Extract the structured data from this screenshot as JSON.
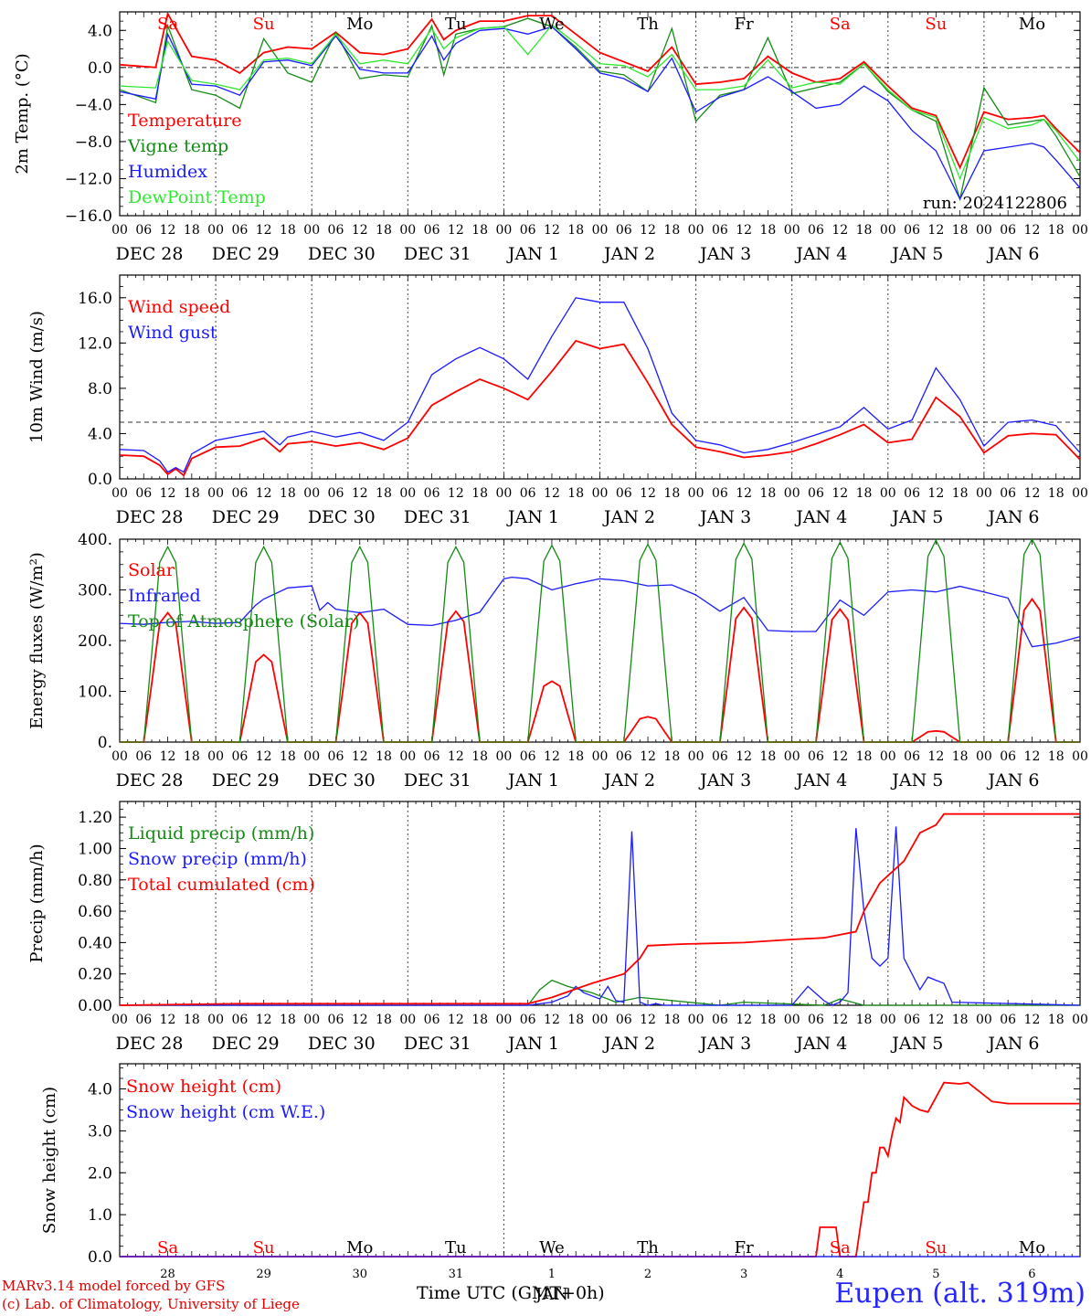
{
  "colors": {
    "red": "#ff0000",
    "green": "#138a13",
    "blue": "#1a1aff",
    "lightgreen": "#2ee82e",
    "grid": "#444444",
    "black": "#000000"
  },
  "weekdays": [
    "Sa",
    "Su",
    "Mo",
    "Tu",
    "We",
    "Th",
    "Fr",
    "Sa",
    "Su",
    "Mo"
  ],
  "weekday_colors": [
    "red",
    "red",
    "black",
    "black",
    "black",
    "black",
    "black",
    "red",
    "red",
    "black"
  ],
  "hour_ticks": [
    "00",
    "06",
    "12",
    "18"
  ],
  "hour_end": "00",
  "date_labels": [
    "DEC 28",
    "DEC 29",
    "DEC 30",
    "DEC 31",
    "JAN  1",
    "JAN  2",
    "JAN  3",
    "JAN  4",
    "JAN  5",
    "JAN  6"
  ],
  "bottom_day_numbers": [
    "28",
    "29",
    "30",
    "31",
    "1",
    "2",
    "3",
    "4",
    "5",
    "6"
  ],
  "bottom_month": "JAN",
  "x_title": "Time UTC (GMT+0h)",
  "credit": {
    "line1": "MARv3.14 model forced by GFS",
    "line2": "(c) Lab. of Climatology, University of Liege"
  },
  "station": "Eupen (alt. 319m)",
  "chart_data": [
    {
      "type": "line",
      "ylabel": "2m Temp. (°C)",
      "ylim": [
        -16,
        6
      ],
      "yticks": [
        4,
        0,
        -4,
        -8,
        -12,
        -16
      ],
      "ytick_labels": [
        "4.0",
        "0.0",
        "−4.0",
        "−8.0",
        "−12.0",
        "−16.0"
      ],
      "ref_line": 0,
      "run_label": "run: 2024122806",
      "series": [
        {
          "name": "Temperature",
          "color": "red",
          "x": [
            0,
            9,
            12,
            18,
            24,
            30,
            36,
            42,
            48,
            54,
            60,
            66,
            72,
            78,
            81,
            84,
            90,
            96,
            102,
            108,
            114,
            120,
            126,
            132,
            138,
            144,
            150,
            156,
            162,
            168,
            174,
            180,
            186,
            192,
            198,
            204,
            210,
            216,
            222,
            228,
            231,
            234,
            240
          ],
          "y": [
            0.3,
            0,
            5.8,
            1.2,
            0.8,
            -0.6,
            1.6,
            2.2,
            2,
            3.8,
            1.6,
            1.4,
            2,
            5.2,
            3,
            4,
            5,
            5,
            5.6,
            5.6,
            3.6,
            1.6,
            0.6,
            -0.4,
            2.2,
            -1.8,
            -1.6,
            -1.2,
            1.2,
            -0.6,
            -1.6,
            -1.2,
            0.6,
            -2,
            -4.4,
            -5.2,
            -10.8,
            -4.8,
            -5.6,
            -5.4,
            -5.2,
            -6.6,
            -9.2
          ]
        },
        {
          "name": "Vigne temp",
          "color": "green",
          "x": [
            0,
            9,
            12,
            18,
            24,
            30,
            36,
            42,
            48,
            54,
            60,
            66,
            72,
            78,
            81,
            84,
            90,
            96,
            102,
            108,
            114,
            120,
            126,
            132,
            138,
            144,
            150,
            156,
            162,
            168,
            174,
            180,
            186,
            192,
            198,
            204,
            210,
            216,
            222,
            228,
            231,
            234,
            240
          ],
          "y": [
            -2.4,
            -3.8,
            4.5,
            -2.4,
            -3,
            -4.4,
            3.1,
            -0.6,
            -1.6,
            3.8,
            -1.2,
            -0.8,
            -1,
            4.5,
            -0.8,
            3.6,
            4.2,
            4.4,
            5.3,
            4.4,
            2.2,
            -0.4,
            -0.8,
            -2.6,
            4.2,
            -5.8,
            -3,
            -2.4,
            3.2,
            -2.8,
            -2.2,
            -1.6,
            0.4,
            -2.6,
            -4.6,
            -5.8,
            -14.2,
            -2.2,
            -6.2,
            -5.8,
            -5.6,
            -7.4,
            -11.8
          ]
        },
        {
          "name": "Humidex",
          "color": "blue",
          "x": [
            0,
            9,
            12,
            18,
            24,
            30,
            36,
            42,
            48,
            54,
            60,
            66,
            72,
            78,
            81,
            84,
            90,
            96,
            102,
            108,
            114,
            120,
            126,
            132,
            138,
            144,
            150,
            156,
            162,
            168,
            174,
            180,
            186,
            192,
            198,
            204,
            210,
            216,
            222,
            228,
            231,
            234,
            240
          ],
          "y": [
            -2.6,
            -3.4,
            3.6,
            -1.8,
            -2,
            -3,
            0.6,
            0.8,
            0.2,
            3.4,
            -0.2,
            -0.6,
            -0.6,
            3.4,
            0.8,
            2.6,
            4,
            4.2,
            3.6,
            4.4,
            2,
            -0.6,
            -1.2,
            -2.6,
            1,
            -4.8,
            -3.2,
            -2.4,
            -1,
            -2.6,
            -4.4,
            -4,
            -2,
            -3.6,
            -6.8,
            -9,
            -14.2,
            -9,
            -8.6,
            -8.2,
            -8.6,
            -10,
            -13
          ]
        },
        {
          "name": "DewPoint Temp",
          "color": "lightgreen",
          "x": [
            0,
            9,
            12,
            18,
            24,
            30,
            36,
            42,
            48,
            54,
            60,
            66,
            72,
            78,
            81,
            84,
            90,
            96,
            102,
            108,
            114,
            120,
            126,
            132,
            138,
            144,
            150,
            156,
            162,
            168,
            174,
            180,
            186,
            192,
            198,
            204,
            210,
            216,
            222,
            228,
            231,
            234,
            240
          ],
          "y": [
            -2,
            -2.2,
            2.8,
            -1.4,
            -1.8,
            -2.4,
            0.8,
            1,
            0.4,
            3.6,
            0.4,
            0.8,
            0.4,
            4.2,
            2,
            3.2,
            4.2,
            4.4,
            1.4,
            4.6,
            2.6,
            0.4,
            0.2,
            -1,
            1.4,
            -2.4,
            -2.4,
            -2,
            0.8,
            -2.2,
            -1.6,
            -1.8,
            0.4,
            -2.4,
            -4.6,
            -5.4,
            -12,
            -5.4,
            -6.6,
            -6.2,
            -5.6,
            -6.8,
            -10.2
          ]
        }
      ]
    },
    {
      "type": "line",
      "ylabel": "10m Wind (m/s)",
      "ylim": [
        0,
        18
      ],
      "yticks": [
        16,
        12,
        8,
        4,
        0
      ],
      "ytick_labels": [
        "16.0",
        "12.0",
        "8.0",
        "4.0",
        "0.0"
      ],
      "ref_line": 5,
      "series": [
        {
          "name": "Wind speed",
          "color": "red",
          "x": [
            0,
            6,
            10,
            12,
            14,
            16,
            18,
            24,
            30,
            36,
            40,
            42,
            48,
            54,
            60,
            66,
            72,
            78,
            84,
            90,
            96,
            102,
            108,
            114,
            120,
            126,
            132,
            138,
            144,
            150,
            156,
            162,
            168,
            174,
            180,
            186,
            192,
            198,
            204,
            210,
            216,
            222,
            228,
            234,
            240
          ],
          "y": [
            2.1,
            2,
            1.2,
            0.4,
            0.9,
            0.3,
            1.8,
            2.8,
            2.9,
            3.6,
            2.4,
            3.1,
            3.3,
            2.9,
            3.2,
            2.6,
            3.6,
            6.5,
            7.7,
            8.8,
            8,
            7,
            9.5,
            12.2,
            11.5,
            11.9,
            8.5,
            4.8,
            2.8,
            2.4,
            1.9,
            2.1,
            2.4,
            3.1,
            3.9,
            4.8,
            3.2,
            3.5,
            7.2,
            5.5,
            2.3,
            3.8,
            4,
            3.9,
            1.7
          ]
        },
        {
          "name": "Wind gust",
          "color": "blue",
          "x": [
            0,
            6,
            10,
            12,
            14,
            16,
            18,
            24,
            30,
            36,
            40,
            42,
            48,
            54,
            60,
            66,
            72,
            78,
            84,
            90,
            96,
            102,
            108,
            114,
            120,
            126,
            132,
            138,
            144,
            150,
            156,
            162,
            168,
            174,
            180,
            186,
            192,
            198,
            204,
            210,
            216,
            222,
            228,
            234,
            240
          ],
          "y": [
            2.6,
            2.5,
            1.6,
            0.6,
            1,
            0.6,
            2.2,
            3.4,
            3.8,
            4.2,
            3,
            3.7,
            4.2,
            3.7,
            4.1,
            3.4,
            5,
            9.2,
            10.6,
            11.6,
            10.6,
            8.8,
            12.6,
            16,
            15.6,
            15.6,
            11.5,
            5.8,
            3.4,
            3,
            2.3,
            2.6,
            3.2,
            3.9,
            4.6,
            6.3,
            4.4,
            5.2,
            9.8,
            7,
            2.9,
            5,
            5.2,
            4.7,
            2.3
          ]
        }
      ]
    },
    {
      "type": "line",
      "ylabel": "Energy fluxes (W/m²)",
      "ylim": [
        0,
        400
      ],
      "yticks": [
        400,
        300,
        200,
        100,
        0
      ],
      "ytick_labels": [
        "400.",
        "300.",
        "200.",
        "100.",
        "0."
      ],
      "series": [
        {
          "name": "Solar",
          "color": "red",
          "peaks": [
            255,
            172,
            255,
            258,
            120,
            50,
            265,
            262,
            22,
            282
          ]
        },
        {
          "name": "Infrared",
          "color": "blue",
          "x": [
            0,
            6,
            12,
            18,
            24,
            30,
            34,
            36,
            42,
            48,
            50,
            52,
            54,
            60,
            66,
            72,
            78,
            84,
            90,
            96,
            98,
            102,
            108,
            114,
            120,
            126,
            132,
            138,
            144,
            150,
            156,
            162,
            168,
            174,
            180,
            186,
            192,
            198,
            204,
            210,
            216,
            222,
            228,
            234,
            240
          ],
          "y": [
            234,
            232,
            236,
            238,
            234,
            236,
            270,
            282,
            304,
            308,
            260,
            275,
            262,
            255,
            262,
            232,
            230,
            240,
            256,
            322,
            325,
            322,
            300,
            312,
            322,
            318,
            308,
            310,
            290,
            258,
            285,
            220,
            218,
            218,
            280,
            250,
            296,
            300,
            296,
            307,
            296,
            284,
            188,
            195,
            208
          ]
        },
        {
          "name": "Top of Atmosphere (Solar)",
          "color": "green",
          "peaks": [
            385,
            385,
            385,
            385,
            388,
            390,
            392,
            394,
            398,
            402
          ]
        }
      ]
    },
    {
      "type": "line",
      "ylabel": "Precip (mm/h)",
      "ylim": [
        0,
        1.3
      ],
      "yticks": [
        1.2,
        1,
        0.8,
        0.6,
        0.4,
        0.2,
        0
      ],
      "ytick_labels": [
        "1.20",
        "1.00",
        "0.80",
        "0.60",
        "0.40",
        "0.20",
        "0.00"
      ],
      "series": [
        {
          "name": "Liquid precip (mm/h)",
          "color": "green",
          "x": [
            0,
            102,
            105,
            108,
            112,
            118,
            124,
            130,
            150,
            156,
            176,
            178,
            180,
            186,
            192,
            240
          ],
          "y": [
            0,
            0,
            0.1,
            0.16,
            0.12,
            0.08,
            0.02,
            0.05,
            0,
            0.02,
            0,
            0.02,
            0.04,
            0,
            0,
            0
          ]
        },
        {
          "name": "Snow precip (mm/h)",
          "color": "blue",
          "x": [
            0,
            102,
            108,
            112,
            114,
            116,
            118,
            120,
            122,
            124,
            126,
            128,
            130,
            132,
            134,
            136,
            138,
            144,
            150,
            168,
            172,
            176,
            178,
            180,
            182,
            184,
            186,
            188,
            190,
            192,
            194,
            196,
            198,
            200,
            202,
            204,
            206,
            208,
            240
          ],
          "y": [
            0,
            0,
            0.02,
            0.06,
            0.12,
            0.08,
            0.06,
            0.04,
            0.12,
            0.03,
            0.02,
            1.11,
            0.02,
            0,
            0.01,
            0,
            0,
            0,
            0,
            0,
            0.12,
            0.03,
            0,
            0.02,
            0.08,
            1.13,
            0.6,
            0.3,
            0.25,
            0.3,
            1.14,
            0.3,
            0.2,
            0.1,
            0.18,
            0.16,
            0.14,
            0.02,
            0
          ]
        },
        {
          "name": "Total cumulated (cm)",
          "color": "red",
          "x": [
            0,
            30,
            102,
            108,
            118,
            126,
            130,
            132,
            140,
            156,
            168,
            176,
            184,
            186,
            190,
            196,
            200,
            204,
            206,
            240
          ],
          "y": [
            0,
            0.01,
            0.01,
            0.05,
            0.14,
            0.2,
            0.3,
            0.38,
            0.39,
            0.4,
            0.42,
            0.43,
            0.47,
            0.6,
            0.78,
            0.92,
            1.1,
            1.15,
            1.22,
            1.22
          ]
        }
      ]
    },
    {
      "type": "line",
      "ylabel": "Snow height (cm)",
      "ylim": [
        0,
        4.6
      ],
      "yticks": [
        4,
        3,
        2,
        1,
        0
      ],
      "ytick_labels": [
        "4.0",
        "3.0",
        "2.0",
        "1.0",
        "0.0"
      ],
      "series": [
        {
          "name": "Snow height (cm)",
          "color": "red",
          "x": [
            0,
            174,
            175,
            179,
            180,
            184,
            186,
            187,
            188,
            189,
            190,
            191,
            192,
            193,
            194,
            195,
            196,
            197,
            198,
            200,
            202,
            206,
            210,
            212,
            218,
            222,
            230,
            240
          ],
          "y": [
            0,
            0,
            0.7,
            0.7,
            0,
            0,
            1.3,
            1.3,
            2,
            2,
            2.6,
            2.6,
            2.4,
            2.9,
            3.3,
            3.2,
            3.8,
            3.7,
            3.6,
            3.5,
            3.45,
            4.15,
            4.12,
            4.15,
            3.7,
            3.65,
            3.65,
            3.65
          ]
        },
        {
          "name": "Snow height (cm W.E.)",
          "color": "blue",
          "x": [
            0,
            240
          ],
          "y": [
            0,
            0
          ]
        }
      ]
    }
  ]
}
